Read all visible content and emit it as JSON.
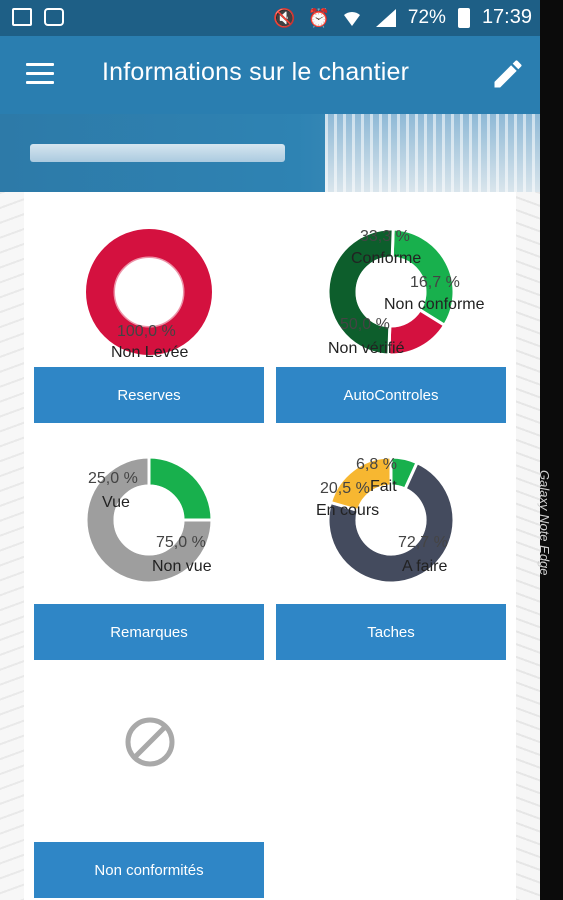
{
  "status_bar": {
    "battery_percent": "72%",
    "time": "17:39",
    "icons": [
      "gallery-icon",
      "app-icon",
      "mute-icon",
      "alarm-icon",
      "wifi-icon",
      "signal-icon",
      "battery-icon"
    ]
  },
  "app_bar": {
    "title": "Informations sur le chantier",
    "menu_icon": "menu-icon",
    "edit_icon": "edit-pencil-icon"
  },
  "device_edge_text": "Galaxy Note Edge",
  "colors": {
    "app_bar": "#2a7eb0",
    "status_bar": "#1e5f86",
    "button": "#2f86c6",
    "red": "#d4113f",
    "green": "#18b04d",
    "dark_green": "#0d5e2c",
    "gray": "#9e9e9e",
    "slate": "#444b5e",
    "yellow": "#f7b731"
  },
  "tiles": [
    {
      "button_label": "Reserves"
    },
    {
      "button_label": "AutoControles"
    },
    {
      "button_label": "Remarques"
    },
    {
      "button_label": "Taches"
    },
    {
      "button_label": "Non conformités",
      "empty_state_icon": "no-data-icon"
    }
  ],
  "chart_data": [
    {
      "type": "pie",
      "labels": [
        "Non Levée"
      ],
      "values": [
        100.0
      ],
      "value_labels": [
        "100,0 %"
      ],
      "colors": [
        "#d4113f"
      ]
    },
    {
      "type": "pie",
      "labels": [
        "Conforme",
        "Non conforme",
        "Non vérifié"
      ],
      "values": [
        33.3,
        16.7,
        50.0
      ],
      "value_labels": [
        "33,3 %",
        "16,7 %",
        "50,0 %"
      ],
      "colors": [
        "#18b04d",
        "#d4113f",
        "#0d5e2c"
      ]
    },
    {
      "type": "pie",
      "labels": [
        "Vue",
        "Non vue"
      ],
      "values": [
        25.0,
        75.0
      ],
      "value_labels": [
        "25,0 %",
        "75,0 %"
      ],
      "colors": [
        "#18b04d",
        "#9e9e9e"
      ]
    },
    {
      "type": "pie",
      "labels": [
        "Fait",
        "A faire",
        "En cours"
      ],
      "values": [
        6.8,
        72.7,
        20.5
      ],
      "value_labels": [
        "6,8 %",
        "72,7 %",
        "20,5 %"
      ],
      "colors": [
        "#18b04d",
        "#444b5e",
        "#f7b731"
      ]
    }
  ]
}
